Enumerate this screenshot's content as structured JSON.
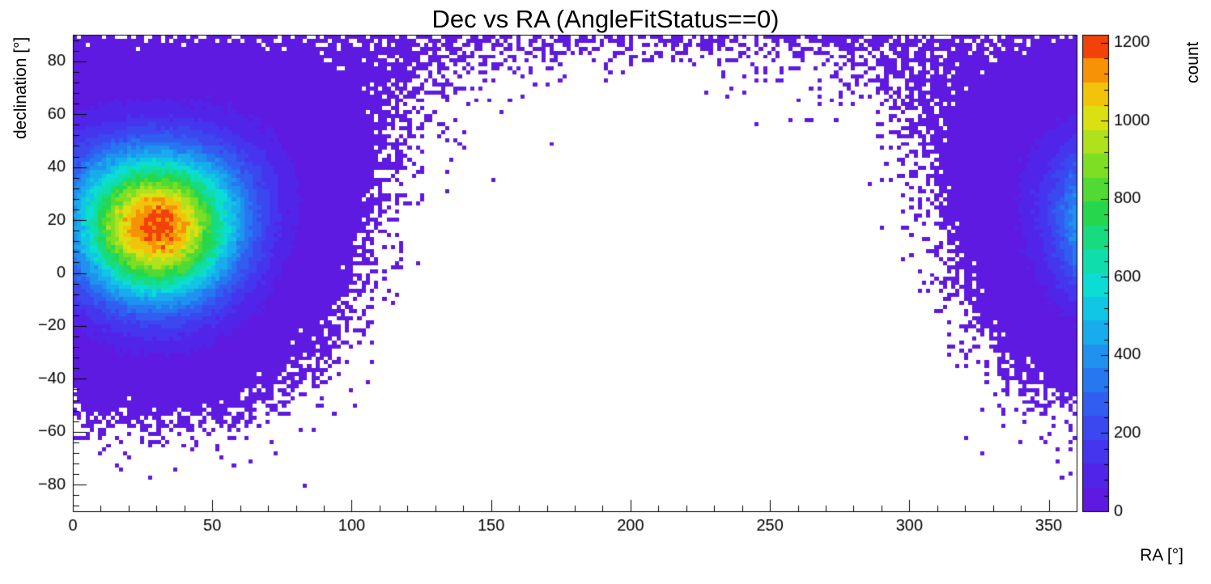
{
  "chart_data": {
    "type": "heatmap",
    "title": "Dec vs RA (AngleFitStatus==0)",
    "xlabel": "RA [°]",
    "ylabel": "declination [°]",
    "zlabel": "count",
    "x_range": [
      0,
      360
    ],
    "y_range": [
      -90,
      90
    ],
    "z_range": [
      0,
      1220
    ],
    "x_bins": 240,
    "y_bins": 120,
    "grid": false,
    "legend_position": "right-colorbar",
    "x_ticks": {
      "values": [
        0,
        50,
        100,
        150,
        200,
        250,
        300,
        350
      ],
      "labels": [
        "0",
        "50",
        "100",
        "150",
        "200",
        "250",
        "300",
        "350"
      ],
      "minor_step": 10
    },
    "y_ticks": {
      "values": [
        80,
        60,
        40,
        20,
        0,
        -20,
        -40,
        -60,
        -80
      ],
      "labels": [
        "80",
        "60",
        "40",
        "20",
        "0",
        "−20",
        "−40",
        "−60",
        "−80"
      ],
      "minor_step": 4
    },
    "z_ticks": {
      "values": [
        0,
        200,
        400,
        600,
        800,
        1000,
        1200
      ],
      "labels": [
        "0",
        "200",
        "400",
        "600",
        "800",
        "1000",
        "1200"
      ],
      "minor_step": 40
    },
    "n_contours": 20,
    "palette": [
      {
        "pos": 0.0,
        "color": "#6414dc"
      },
      {
        "pos": 0.1,
        "color": "#4b2bed"
      },
      {
        "pos": 0.2,
        "color": "#3652f0"
      },
      {
        "pos": 0.3,
        "color": "#2283f0"
      },
      {
        "pos": 0.4,
        "color": "#14b9ec"
      },
      {
        "pos": 0.48,
        "color": "#0adfd2"
      },
      {
        "pos": 0.56,
        "color": "#12dc8e"
      },
      {
        "pos": 0.63,
        "color": "#28d748"
      },
      {
        "pos": 0.7,
        "color": "#66dc28"
      },
      {
        "pos": 0.77,
        "color": "#aae11e"
      },
      {
        "pos": 0.84,
        "color": "#e9e00e"
      },
      {
        "pos": 0.9,
        "color": "#f7b008"
      },
      {
        "pos": 0.95,
        "color": "#f77405"
      },
      {
        "pos": 0.98,
        "color": "#f0380a"
      },
      {
        "pos": 1.0,
        "color": "#e31e0a"
      }
    ],
    "distribution": {
      "model": "spherical_gaussian_poisson",
      "center_ra_deg": 30,
      "center_dec_deg": 17.5,
      "sigma_deg": 19.5,
      "peak_count": 1215,
      "wraps_in_ra": true,
      "seed": 7
    },
    "frame_color": "#000000",
    "background_color": "#ffffff"
  }
}
